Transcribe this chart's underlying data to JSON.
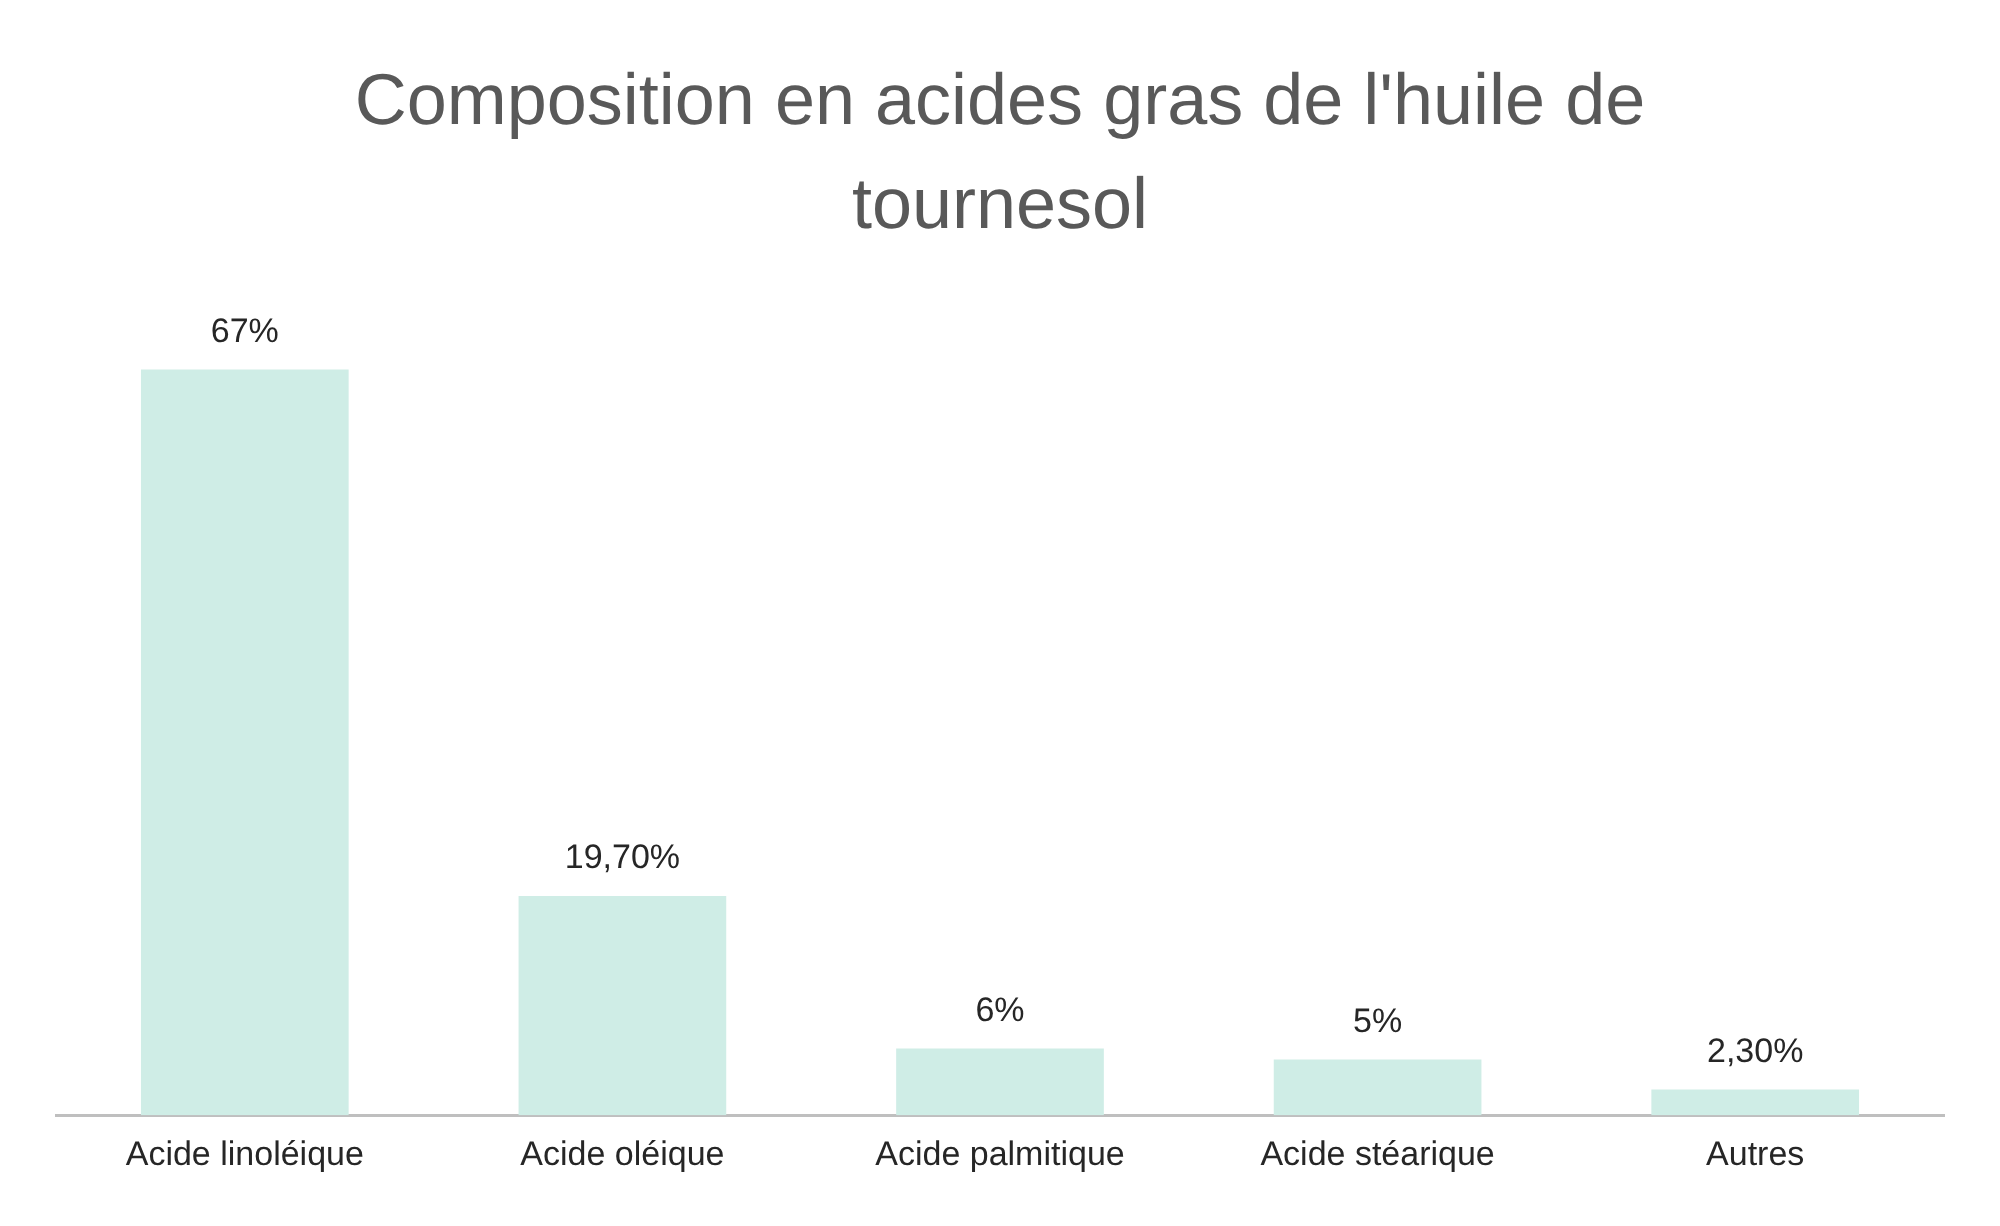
{
  "chart_data": {
    "type": "bar",
    "title": "Composition en acides gras de l'huile de tournesol",
    "categories": [
      "Acide linoléique",
      "Acide oléique",
      "Acide palmitique",
      "Acide stéarique",
      "Autres"
    ],
    "values": [
      67,
      19.7,
      6,
      5,
      2.3
    ],
    "value_labels": [
      "67%",
      "19,70%",
      "6%",
      "5%",
      "2,30%"
    ],
    "color": "#cfede6",
    "grid": false,
    "legend": false
  }
}
